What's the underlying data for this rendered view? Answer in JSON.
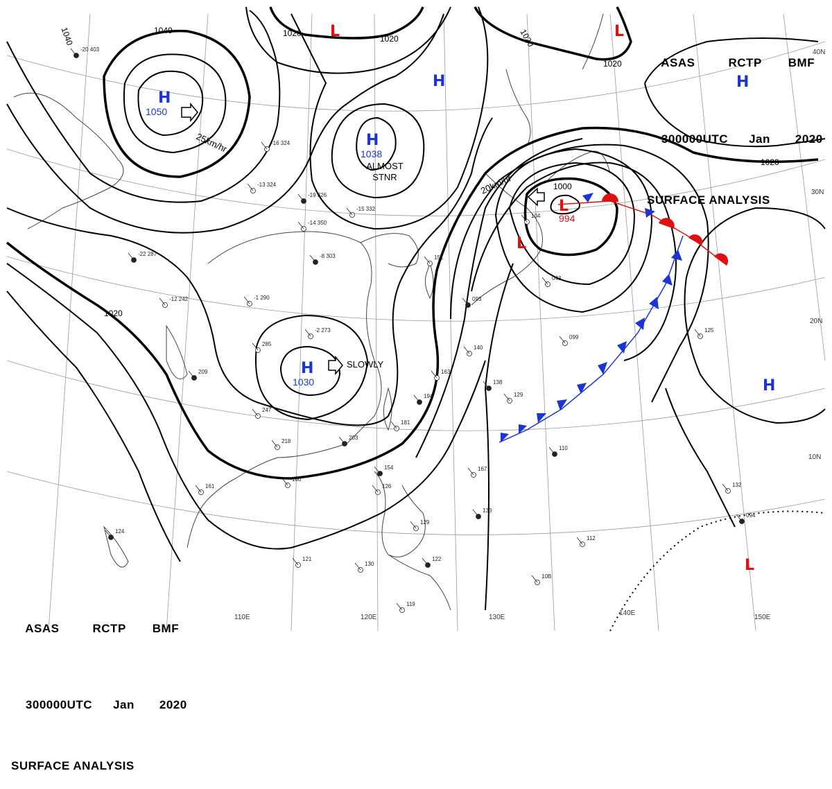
{
  "header": {
    "agency": "ASAS",
    "station": "RCTP",
    "office": "BMF",
    "time": "300000UTC",
    "month": "Jan",
    "year": "2020",
    "product": "SURFACE ANALYSIS"
  },
  "grid": {
    "longitudes": [
      "110E",
      "120E",
      "130E",
      "140E",
      "150E"
    ],
    "latitudes": [
      "40N",
      "30N",
      "20N",
      "10N"
    ]
  },
  "isobars": [
    "1040",
    "1020",
    "1020",
    "1020",
    "1020",
    "1000"
  ],
  "systems": [
    {
      "type": "H",
      "pressure": "1050",
      "motion": "25km/hr"
    },
    {
      "type": "H",
      "pressure": "1038",
      "motion": "ALMOST STNR"
    },
    {
      "type": "H",
      "pressure": "1030",
      "motion": "SLOWLY"
    },
    {
      "type": "H",
      "pressure": "",
      "motion": ""
    },
    {
      "type": "H",
      "pressure": "",
      "motion": ""
    },
    {
      "type": "L",
      "pressure": "994",
      "motion": "20km/hr"
    },
    {
      "type": "L",
      "pressure": "",
      "motion": ""
    },
    {
      "type": "L",
      "pressure": "",
      "motion": ""
    },
    {
      "type": "L",
      "pressure": "",
      "motion": ""
    },
    {
      "type": "L",
      "pressure": "",
      "motion": ""
    }
  ],
  "station_samples": [
    "-20 403",
    "-16 324",
    "-13 324",
    "-19 326",
    "-15 332",
    "-14 350",
    "-8 303",
    "-1 290",
    "-12 242",
    "-22 287",
    "-2 273",
    "285",
    "209",
    "247",
    "218",
    "203",
    "180",
    "161",
    "124",
    "121",
    "130",
    "154",
    "126",
    "163",
    "138",
    "140",
    "129",
    "194",
    "181",
    "167",
    "133",
    "112",
    "10B",
    "110",
    "099",
    "125",
    "094",
    "132",
    "129",
    "122",
    "119",
    "043",
    "093",
    "151",
    "104"
  ],
  "colors": {
    "high": "#1a35d4",
    "low": "#e01010",
    "warm_front": "#e01010",
    "cold_front": "#1a35d4",
    "isobar": "#000000",
    "grid": "#999999"
  }
}
